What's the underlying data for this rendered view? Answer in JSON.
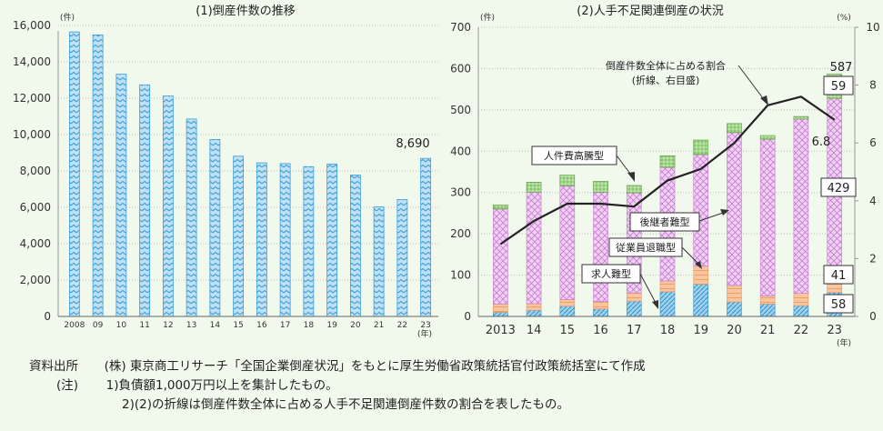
{
  "left_chart": {
    "title": "(1)倒産件数の推移",
    "y_unit": "(件)",
    "x_unit": "(年)",
    "last_value_label": "8,690",
    "colors": {
      "bars": "#5aaee0"
    }
  },
  "right_chart": {
    "title": "(2)人手不足関連倒産の状況",
    "y_unit": "(件)",
    "y2_unit": "(%)",
    "x_unit": "(年)",
    "callouts": {
      "labour_cost": "人件費高騰型",
      "successor": "後継者難型",
      "retirement": "従業員退職型",
      "recruitment": "求人難型",
      "ratio_line1": "倒産件数全体に占める割合",
      "ratio_line2": "(折線、右目盛)"
    },
    "value_labels": {
      "total": "587",
      "labour_cost": "59",
      "ratio": "6.8",
      "successor": "429",
      "retirement": "41",
      "recruitment": "58"
    },
    "colors": {
      "recruitment": "#5aaee0",
      "retirement": "#f4a66b",
      "successor": "#e7a3ec",
      "labour_cost": "#6fbf4f",
      "ratio_line": "#222222"
    }
  },
  "notes": {
    "source_label": "資料出所",
    "source_text": "(株) 東京商工リサーチ「全国企業倒産状況」をもとに厚生労働省政策統括官付政策統括室にて作成",
    "note_label": "(注)",
    "note1": "1)負債額1,000万円以上を集計したもの。",
    "note2": "2)(2)の折線は倒産件数全体に占める人手不足関連倒産件数の割合を表したもの。"
  },
  "chart_data": [
    {
      "type": "bar",
      "title": "(1)倒産件数の推移",
      "ylabel": "(件)",
      "xlabel": "(年)",
      "categories": [
        "2008",
        "09",
        "10",
        "11",
        "12",
        "13",
        "14",
        "15",
        "16",
        "17",
        "18",
        "19",
        "20",
        "21",
        "22",
        "23"
      ],
      "values": [
        15646,
        15480,
        13321,
        12734,
        12124,
        10855,
        9731,
        8812,
        8446,
        8405,
        8235,
        8383,
        7773,
        6030,
        6428,
        8690
      ],
      "ylim": [
        0,
        16000
      ],
      "yticks": [
        "0",
        "2,000",
        "4,000",
        "6,000",
        "8,000",
        "10,000",
        "12,000",
        "14,000",
        "16,000"
      ],
      "grid": true
    },
    {
      "type": "bar",
      "title": "(2)人手不足関連倒産の状況",
      "stacked": true,
      "ylabel": "(件)",
      "y2label": "(%)",
      "xlabel": "(年)",
      "categories": [
        "2013",
        "14",
        "15",
        "16",
        "17",
        "18",
        "19",
        "20",
        "21",
        "22",
        "23"
      ],
      "series": [
        {
          "name": "求人難型",
          "values": [
            10,
            15,
            25,
            18,
            37,
            60,
            78,
            35,
            30,
            26,
            58
          ]
        },
        {
          "name": "従業員退職型",
          "values": [
            20,
            16,
            16,
            18,
            20,
            26,
            44,
            40,
            20,
            30,
            41
          ]
        },
        {
          "name": "後継者難型",
          "values": [
            230,
            270,
            275,
            265,
            242,
            275,
            270,
            370,
            379,
            422,
            429
          ]
        },
        {
          "name": "人件費高騰型",
          "values": [
            10,
            24,
            26,
            26,
            18,
            28,
            35,
            22,
            9,
            6,
            59
          ]
        }
      ],
      "line_series": {
        "name": "倒産件数全体に占める割合",
        "axis": "right",
        "values": [
          2.5,
          3.3,
          3.9,
          3.9,
          3.8,
          4.7,
          5.1,
          6.0,
          7.3,
          7.6,
          6.8
        ]
      },
      "ylim": [
        0,
        700
      ],
      "y2lim": [
        0,
        10
      ],
      "yticks": [
        "0",
        "100",
        "200",
        "300",
        "400",
        "500",
        "600",
        "700"
      ],
      "y2ticks": [
        "0",
        "2",
        "4",
        "6",
        "8",
        "10"
      ],
      "grid": true
    }
  ]
}
